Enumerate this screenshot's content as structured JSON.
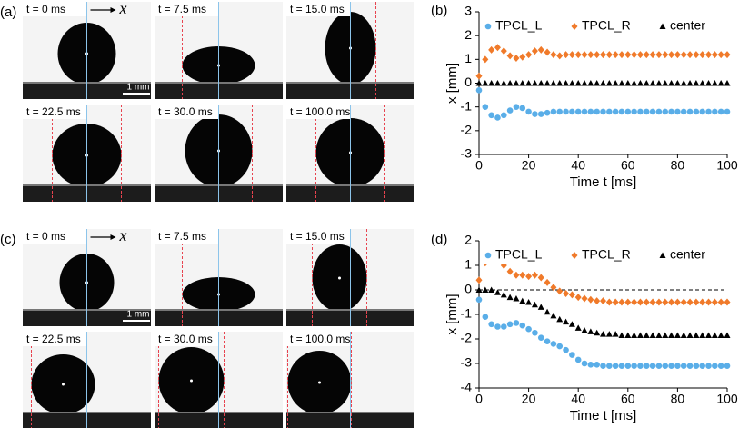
{
  "photo_panels": [
    {
      "label": "(a)",
      "frames": [
        "t = 0 ms",
        "t = 7.5 ms",
        "t = 15.0 ms",
        "t = 22.5 ms",
        "t = 30.0 ms",
        "t = 100.0 ms"
      ],
      "axis_label": "x",
      "scale_bar": "1 mm"
    },
    {
      "label": "(c)",
      "frames": [
        "t = 0 ms",
        "t = 7.5 ms",
        "t = 15.0 ms",
        "t = 22.5 ms",
        "t = 30.0 ms",
        "t = 100.0 ms"
      ],
      "axis_label": "x",
      "scale_bar": "1 mm"
    }
  ],
  "chart_data": [
    {
      "type": "scatter",
      "label": "(b)",
      "xlabel": "Time t [ms]",
      "ylabel": "x [mm]",
      "xlim": [
        0,
        100
      ],
      "xticks": [
        0,
        20,
        40,
        60,
        80,
        100
      ],
      "ylim": [
        -3,
        3
      ],
      "yticks": [
        -3,
        -2,
        -1,
        0,
        1,
        2,
        3
      ],
      "legend": "top",
      "reference_line": null,
      "x": [
        0,
        2.5,
        5,
        7.5,
        10,
        12.5,
        15,
        17.5,
        20,
        22.5,
        25,
        27.5,
        30,
        32.5,
        35,
        37.5,
        40,
        42.5,
        45,
        47.5,
        50,
        52.5,
        55,
        57.5,
        60,
        62.5,
        65,
        67.5,
        70,
        72.5,
        75,
        77.5,
        80,
        82.5,
        85,
        87.5,
        90,
        92.5,
        95,
        97.5,
        100
      ],
      "series": [
        {
          "name": "TPCL_L",
          "color": "#5aaee8",
          "marker": "circle",
          "values": [
            -0.3,
            -1.0,
            -1.35,
            -1.45,
            -1.35,
            -1.15,
            -1.0,
            -1.05,
            -1.2,
            -1.3,
            -1.3,
            -1.25,
            -1.2,
            -1.2,
            -1.2,
            -1.2,
            -1.2,
            -1.2,
            -1.2,
            -1.2,
            -1.2,
            -1.2,
            -1.2,
            -1.2,
            -1.2,
            -1.2,
            -1.2,
            -1.2,
            -1.2,
            -1.2,
            -1.2,
            -1.2,
            -1.2,
            -1.2,
            -1.2,
            -1.2,
            -1.2,
            -1.2,
            -1.2,
            -1.2,
            -1.2
          ]
        },
        {
          "name": "TPCL_R",
          "color": "#f07a2a",
          "marker": "diamond",
          "values": [
            0.3,
            1.0,
            1.4,
            1.5,
            1.35,
            1.15,
            1.05,
            1.1,
            1.2,
            1.35,
            1.4,
            1.3,
            1.2,
            1.15,
            1.2,
            1.2,
            1.2,
            1.2,
            1.2,
            1.2,
            1.2,
            1.2,
            1.2,
            1.2,
            1.2,
            1.2,
            1.2,
            1.2,
            1.2,
            1.2,
            1.2,
            1.2,
            1.2,
            1.2,
            1.2,
            1.2,
            1.2,
            1.2,
            1.2,
            1.2,
            1.2
          ]
        },
        {
          "name": "center",
          "color": "#000000",
          "marker": "triangle",
          "values": [
            0,
            0,
            0,
            0,
            0,
            0,
            0,
            0,
            0,
            0,
            0,
            0,
            0,
            0,
            0,
            0,
            0,
            0,
            0,
            0,
            0,
            0,
            0,
            0,
            0,
            0,
            0,
            0,
            0,
            0,
            0,
            0,
            0,
            0,
            0,
            0,
            0,
            0,
            0,
            0,
            0
          ]
        }
      ]
    },
    {
      "type": "scatter",
      "label": "(d)",
      "xlabel": "Time t [ms]",
      "ylabel": "x [mm]",
      "xlim": [
        0,
        100
      ],
      "xticks": [
        0,
        20,
        40,
        60,
        80,
        100
      ],
      "ylim": [
        -4,
        2
      ],
      "yticks": [
        -4,
        -3,
        -2,
        -1,
        0,
        1,
        2
      ],
      "legend": "top",
      "reference_line": {
        "value": 0,
        "style": "dashed"
      },
      "x": [
        0,
        2.5,
        5,
        7.5,
        10,
        12.5,
        15,
        17.5,
        20,
        22.5,
        25,
        27.5,
        30,
        32.5,
        35,
        37.5,
        40,
        42.5,
        45,
        47.5,
        50,
        52.5,
        55,
        57.5,
        60,
        62.5,
        65,
        67.5,
        70,
        72.5,
        75,
        77.5,
        80,
        82.5,
        85,
        87.5,
        90,
        92.5,
        95,
        97.5,
        100
      ],
      "series": [
        {
          "name": "TPCL_L",
          "color": "#5aaee8",
          "marker": "circle",
          "values": [
            -0.4,
            -1.1,
            -1.4,
            -1.5,
            -1.5,
            -1.4,
            -1.35,
            -1.45,
            -1.6,
            -1.75,
            -1.95,
            -2.1,
            -2.2,
            -2.3,
            -2.45,
            -2.65,
            -2.85,
            -3.0,
            -3.05,
            -3.05,
            -3.1,
            -3.1,
            -3.1,
            -3.1,
            -3.1,
            -3.1,
            -3.1,
            -3.1,
            -3.1,
            -3.1,
            -3.1,
            -3.1,
            -3.1,
            -3.1,
            -3.1,
            -3.1,
            -3.1,
            -3.1,
            -3.1,
            -3.1,
            -3.1
          ]
        },
        {
          "name": "TPCL_R",
          "color": "#f07a2a",
          "marker": "diamond",
          "values": [
            0.4,
            1.1,
            1.35,
            1.3,
            1.0,
            0.75,
            0.6,
            0.6,
            0.55,
            0.6,
            0.5,
            0.3,
            0.1,
            -0.05,
            -0.15,
            -0.2,
            -0.3,
            -0.35,
            -0.4,
            -0.45,
            -0.45,
            -0.5,
            -0.5,
            -0.5,
            -0.5,
            -0.5,
            -0.5,
            -0.5,
            -0.5,
            -0.5,
            -0.5,
            -0.5,
            -0.5,
            -0.5,
            -0.5,
            -0.5,
            -0.5,
            -0.5,
            -0.5,
            -0.5,
            -0.5
          ]
        },
        {
          "name": "center",
          "color": "#000000",
          "marker": "triangle",
          "values": [
            0,
            0,
            0,
            -0.1,
            -0.2,
            -0.3,
            -0.35,
            -0.45,
            -0.5,
            -0.6,
            -0.7,
            -0.9,
            -1.05,
            -1.2,
            -1.3,
            -1.4,
            -1.55,
            -1.65,
            -1.7,
            -1.75,
            -1.8,
            -1.8,
            -1.8,
            -1.85,
            -1.85,
            -1.85,
            -1.85,
            -1.85,
            -1.85,
            -1.85,
            -1.85,
            -1.85,
            -1.85,
            -1.85,
            -1.85,
            -1.85,
            -1.85,
            -1.85,
            -1.85,
            -1.85,
            -1.85
          ]
        }
      ]
    }
  ]
}
